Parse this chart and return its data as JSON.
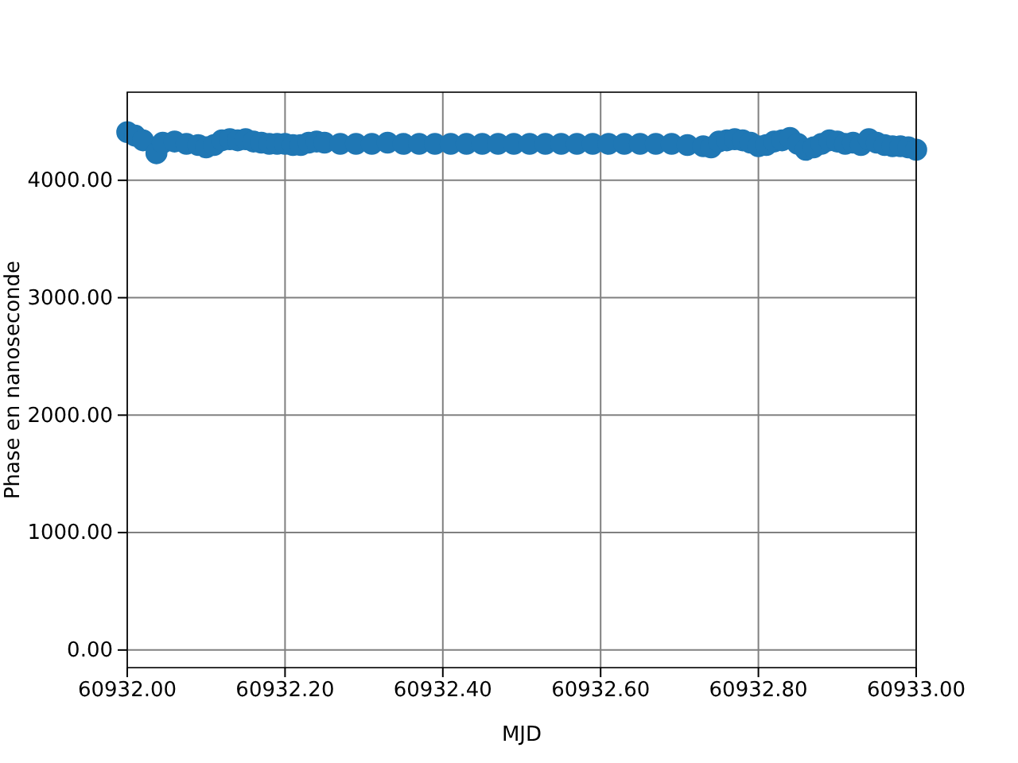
{
  "chart_data": {
    "type": "scatter",
    "xlabel": "MJD",
    "ylabel": "Phase en nanoseconde",
    "x": [
      60932.0,
      60932.01,
      60932.02,
      60932.037,
      60932.045,
      60932.06,
      60932.075,
      60932.09,
      60932.1,
      60932.11,
      60932.12,
      60932.13,
      60932.14,
      60932.15,
      60932.16,
      60932.17,
      60932.18,
      60932.19,
      60932.2,
      60932.21,
      60932.22,
      60932.23,
      60932.24,
      60932.25,
      60932.27,
      60932.29,
      60932.31,
      60932.33,
      60932.35,
      60932.37,
      60932.39,
      60932.41,
      60932.43,
      60932.45,
      60932.47,
      60932.49,
      60932.51,
      60932.53,
      60932.55,
      60932.57,
      60932.59,
      60932.61,
      60932.63,
      60932.65,
      60932.67,
      60932.69,
      60932.71,
      60932.73,
      60932.74,
      60932.75,
      60932.76,
      60932.77,
      60932.78,
      60932.79,
      60932.8,
      60932.81,
      60932.82,
      60932.83,
      60932.84,
      60932.85,
      60932.86,
      60932.87,
      60932.88,
      60932.89,
      60932.9,
      60932.91,
      60932.92,
      60932.93,
      60932.94,
      60932.95,
      60932.96,
      60932.97,
      60932.98,
      60932.99,
      60933.0
    ],
    "series": [
      {
        "color": "#1f77b4",
        "values": [
          4410,
          4380,
          4340,
          4230,
          4320,
          4330,
          4310,
          4300,
          4280,
          4300,
          4340,
          4350,
          4340,
          4350,
          4330,
          4320,
          4310,
          4310,
          4310,
          4300,
          4300,
          4320,
          4330,
          4320,
          4310,
          4310,
          4310,
          4320,
          4310,
          4310,
          4310,
          4310,
          4310,
          4310,
          4310,
          4310,
          4310,
          4310,
          4310,
          4310,
          4310,
          4310,
          4310,
          4310,
          4310,
          4310,
          4300,
          4290,
          4280,
          4330,
          4340,
          4350,
          4340,
          4320,
          4290,
          4300,
          4330,
          4340,
          4360,
          4310,
          4260,
          4280,
          4310,
          4340,
          4330,
          4310,
          4320,
          4300,
          4350,
          4320,
          4300,
          4290,
          4290,
          4280,
          4260
        ]
      }
    ],
    "xlim": [
      60932.0,
      60933.0
    ],
    "xticks": [
      {
        "value": 60932.0,
        "label": "60932.00"
      },
      {
        "value": 60932.2,
        "label": "60932.20"
      },
      {
        "value": 60932.4,
        "label": "60932.40"
      },
      {
        "value": 60932.6,
        "label": "60932.60"
      },
      {
        "value": 60932.8,
        "label": "60932.80"
      },
      {
        "value": 60933.0,
        "label": "60933.00"
      }
    ],
    "ylim": [
      -150,
      4750
    ],
    "yticks": [
      {
        "value": 0,
        "label": "0.00"
      },
      {
        "value": 1000,
        "label": "1000.00"
      },
      {
        "value": 2000,
        "label": "2000.00"
      },
      {
        "value": 3000,
        "label": "3000.00"
      },
      {
        "value": 4000,
        "label": "4000.00"
      }
    ],
    "grid": true,
    "marker": "circle"
  }
}
